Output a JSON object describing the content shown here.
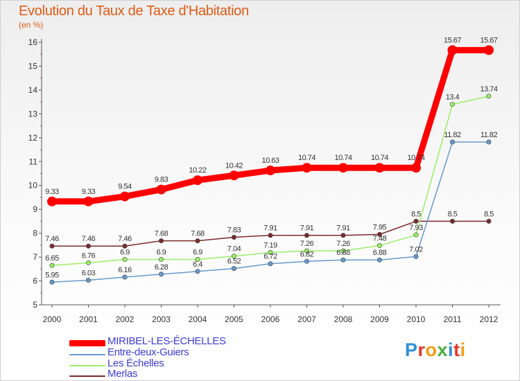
{
  "title": "Evolution du Taux de Taxe d'Habitation",
  "subtitle": "(en %)",
  "logo": {
    "text": "Proxiti",
    "letters": [
      {
        "ch": "P",
        "color": "#2e8fd6"
      },
      {
        "ch": "r",
        "color": "#e3362b"
      },
      {
        "ch": "o",
        "color": "#f29c12"
      },
      {
        "ch": "x",
        "color": "#4cae3c"
      },
      {
        "ch": "i",
        "color": "#2e8fd6"
      },
      {
        "ch": "t",
        "color": "#e3362b"
      },
      {
        "ch": "i",
        "color": "#f29c12"
      }
    ]
  },
  "chart_data": {
    "type": "line",
    "title": "Evolution du Taux de Taxe d'Habitation",
    "subtitle": "(en %)",
    "x": [
      "2000",
      "2001",
      "2002",
      "2003",
      "2004",
      "2005",
      "2006",
      "2007",
      "2008",
      "2009",
      "2010",
      "2011",
      "2012"
    ],
    "yticks": [
      5,
      6,
      7,
      8,
      9,
      10,
      11,
      12,
      13,
      14,
      15,
      16
    ],
    "ylim": [
      5,
      16
    ],
    "grid": false,
    "legend_position": "bottom",
    "series": [
      {
        "name": "MIRIBEL-LES-ÉCHELLES",
        "color": "#ff0000",
        "values": [
          9.33,
          9.33,
          9.54,
          9.83,
          10.22,
          10.42,
          10.63,
          10.74,
          10.74,
          10.74,
          10.74,
          15.67,
          15.67
        ],
        "labels": [
          "9.33",
          "9.33",
          "9.54",
          "9.83",
          "10.22",
          "10.42",
          "10.63",
          "10.74",
          "10.74",
          "10.74",
          "10.74",
          "15.67",
          "15.67"
        ]
      },
      {
        "name": "Entre-deux-Guiers",
        "color": "#6699cc",
        "values": [
          5.95,
          6.03,
          6.16,
          6.28,
          6.4,
          6.52,
          6.72,
          6.82,
          6.88,
          6.88,
          7.02,
          11.82,
          11.82
        ],
        "labels": [
          "5.95",
          "6.03",
          "6.16",
          "6.28",
          "6.4",
          "6.52",
          "6.72",
          "6.82",
          "6.88",
          "6.88",
          "7.02",
          "11.82",
          "11.82"
        ]
      },
      {
        "name": "Les Échelles",
        "color": "#99ee66",
        "values": [
          6.65,
          6.76,
          6.9,
          6.9,
          6.9,
          7.04,
          7.19,
          7.26,
          7.26,
          7.48,
          7.93,
          13.4,
          13.74
        ],
        "labels": [
          "6.65",
          "6.76",
          "6.9",
          "6.9",
          "6.9",
          "7.04",
          "7.19",
          "7.26",
          "7.26",
          "7.48",
          "7.93",
          "13.4",
          "13.74"
        ]
      },
      {
        "name": "Merlas",
        "color": "#7a2a2a",
        "values": [
          7.46,
          7.46,
          7.46,
          7.68,
          7.68,
          7.83,
          7.91,
          7.91,
          7.91,
          7.95,
          8.5,
          8.5,
          8.5
        ],
        "labels": [
          "7.46",
          "7.46",
          "7.46",
          "7.68",
          "7.68",
          "7.83",
          "7.91",
          "7.91",
          "7.91",
          "7.95",
          "8.5",
          "8.5",
          "8.5"
        ]
      }
    ]
  }
}
